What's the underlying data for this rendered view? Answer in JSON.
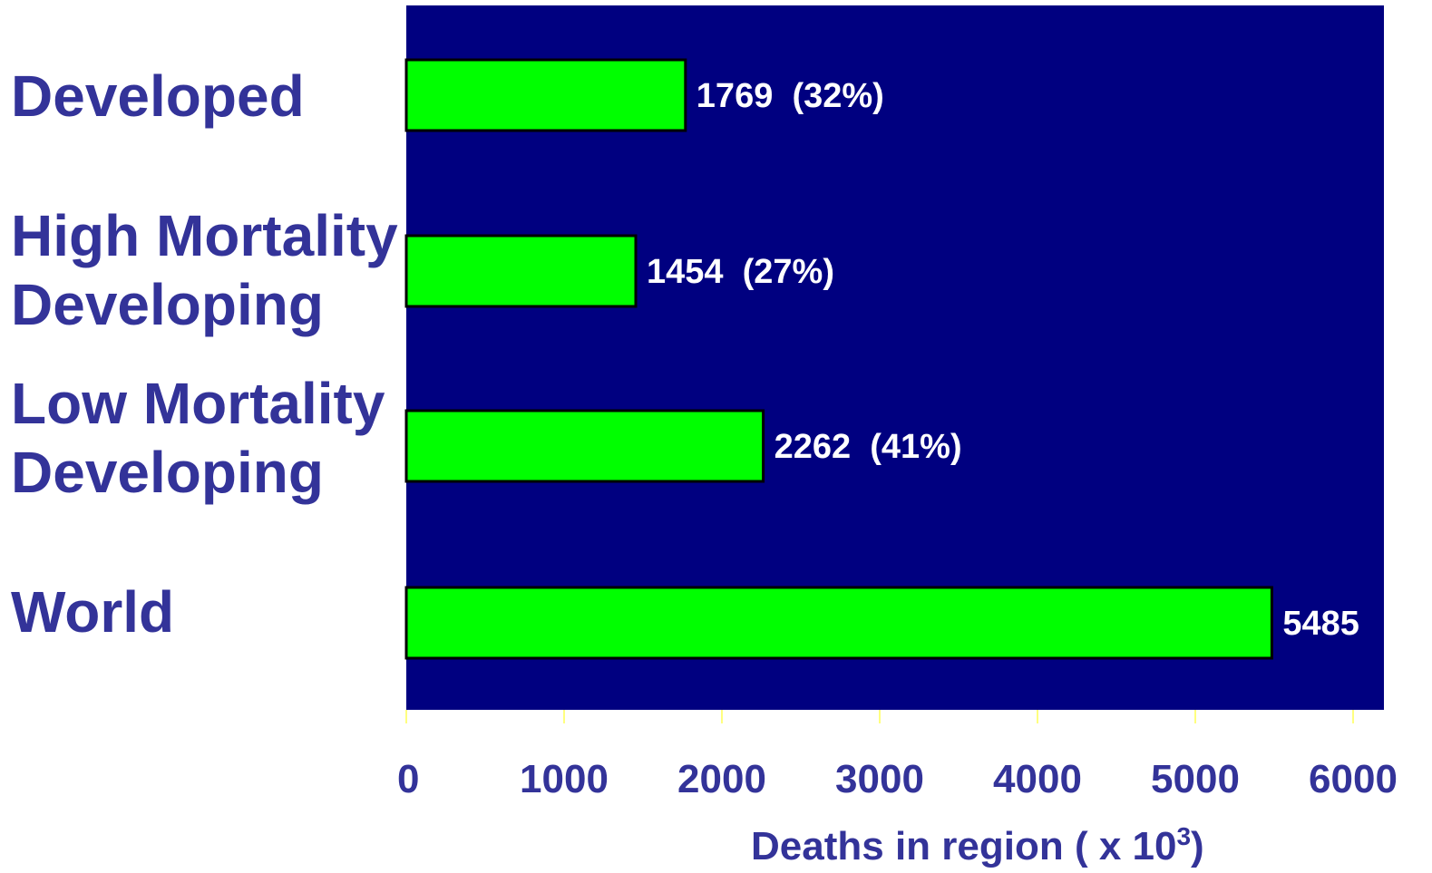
{
  "chart_data": {
    "type": "bar",
    "orientation": "horizontal",
    "categories": [
      [
        "Developed"
      ],
      [
        "High Mortality",
        "Developing"
      ],
      [
        "Low Mortality",
        "Developing"
      ],
      [
        "World"
      ]
    ],
    "values": [
      1769,
      1454,
      2262,
      5485
    ],
    "value_labels": [
      "1769  (32%)",
      "1454  (27%)",
      "2262  (41%)",
      "5485"
    ],
    "xlim": [
      0,
      6000
    ],
    "xticks": [
      0,
      1000,
      2000,
      3000,
      4000,
      5000,
      6000
    ],
    "xlabel": "Deaths in region ( x 10",
    "xlabel_superscript": "3",
    "xlabel_suffix": ")",
    "title": "",
    "grid": false,
    "legend": "none",
    "colors": {
      "plot_background": "#000080",
      "bar_fill": "#00ff00",
      "bar_stroke": "#000000",
      "category_text": "#333399",
      "tick_text": "#333399",
      "axis_title_text": "#333399",
      "value_text": "#ffffff",
      "tick_mark": "#ffff00"
    }
  }
}
